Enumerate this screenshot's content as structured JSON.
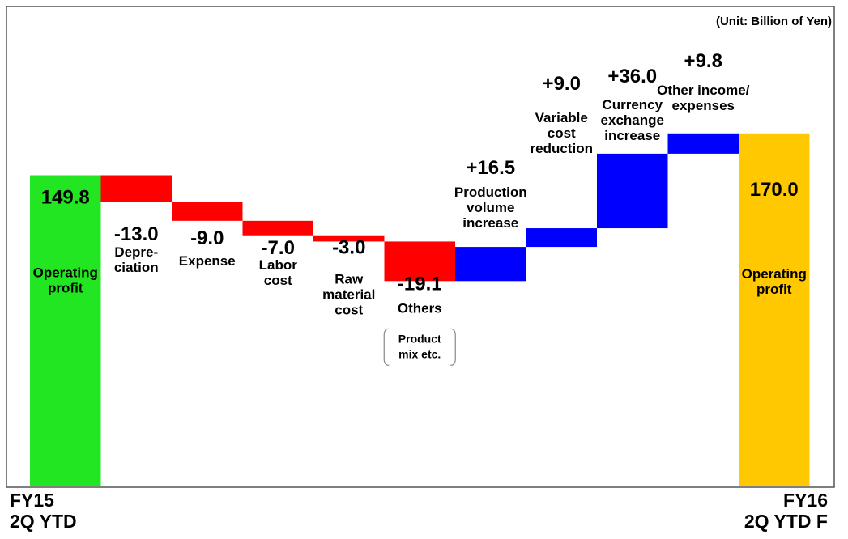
{
  "chart_data": {
    "type": "bar",
    "subtype": "waterfall",
    "unit_note": "(Unit: Billion of Yen)",
    "x_categories": [
      "FY15\n2Q YTD",
      "FY16\n2Q YTD F"
    ],
    "steps": [
      {
        "kind": "total",
        "value": 149.8,
        "value_label": "149.8",
        "label": "Operating\nprofit",
        "color": "#22e622"
      },
      {
        "kind": "delta",
        "value": -13.0,
        "value_label": "-13.0",
        "label": "Depre-\nciation",
        "color": "#ff0000"
      },
      {
        "kind": "delta",
        "value": -9.0,
        "value_label": "-9.0",
        "label": "Expense",
        "color": "#ff0000"
      },
      {
        "kind": "delta",
        "value": -7.0,
        "value_label": "-7.0",
        "label": "Labor\ncost",
        "color": "#ff0000"
      },
      {
        "kind": "delta",
        "value": -3.0,
        "value_label": "-3.0",
        "label": "Raw\nmaterial\ncost",
        "color": "#ff0000"
      },
      {
        "kind": "delta",
        "value": -19.1,
        "value_label": "-19.1",
        "label": "Others",
        "note": "Product\nmix etc.",
        "color": "#ff0000"
      },
      {
        "kind": "delta",
        "value": 16.5,
        "value_label": "+16.5",
        "label": "Production\nvolume\nincrease",
        "color": "#0000ff"
      },
      {
        "kind": "delta",
        "value": 9.0,
        "value_label": "+9.0",
        "label": "Variable\ncost\nreduction",
        "color": "#0000ff"
      },
      {
        "kind": "delta",
        "value": 36.0,
        "value_label": "+36.0",
        "label": "Currency\nexchange\nincrease",
        "color": "#0000ff"
      },
      {
        "kind": "delta",
        "value": 9.8,
        "value_label": "+9.8",
        "label": "Other income/\nexpenses",
        "color": "#0000ff"
      },
      {
        "kind": "total",
        "value": 170.0,
        "value_label": "170.0",
        "label": "Operating\nprofit",
        "color": "#ffc800"
      }
    ]
  }
}
